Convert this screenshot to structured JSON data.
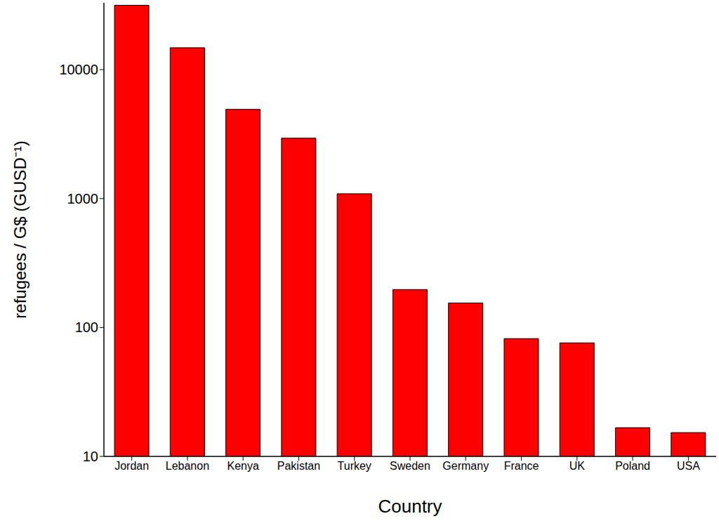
{
  "chart_data": {
    "type": "bar",
    "x_label": "Country",
    "y_label": "refugees / G$ (GUSD⁻¹)",
    "categories": [
      "Jordan",
      "Lebanon",
      "Kenya",
      "Pakistan",
      "Turkey",
      "Sweden",
      "Germany",
      "France",
      "UK",
      "Poland",
      "USA"
    ],
    "values": [
      31600,
      14800,
      4920,
      2940,
      1090,
      197,
      155,
      82,
      76,
      16.7,
      15.3
    ],
    "color": "#ff0000",
    "ylim": [
      10,
      33000
    ],
    "yticks": [
      10,
      100,
      1000,
      10000
    ],
    "log": "y",
    "grid": false
  }
}
